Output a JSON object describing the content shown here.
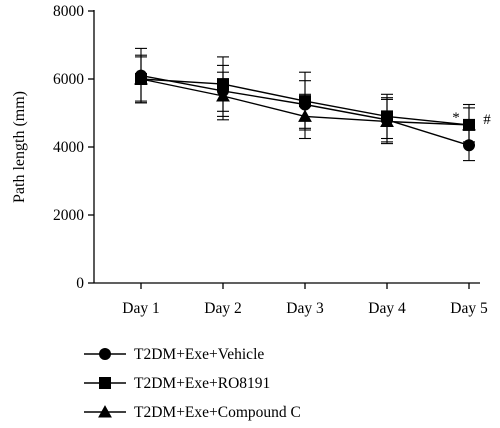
{
  "chart_data": {
    "type": "line",
    "title": "",
    "xlabel": "",
    "ylabel": "Path length (mm)",
    "categories": [
      "Day 1",
      "Day 2",
      "Day 3",
      "Day 4",
      "Day 5"
    ],
    "ylim": [
      0,
      8000
    ],
    "yticks": [
      "0",
      "2000",
      "4000",
      "6000",
      "8000"
    ],
    "grid": false,
    "legend_position": "bottom-left",
    "series": [
      {
        "name": "T2DM+Exe+Vehicle",
        "marker": "circle",
        "values": [
          6100,
          5650,
          5250,
          4800,
          4050
        ],
        "errors": [
          800,
          750,
          700,
          650,
          450
        ]
      },
      {
        "name": "T2DM+Exe+RO8191",
        "marker": "square",
        "values": [
          6000,
          5850,
          5350,
          4900,
          4650
        ],
        "errors": [
          700,
          800,
          850,
          650,
          600
        ]
      },
      {
        "name": "T2DM+Exe+Compound C",
        "marker": "triangle",
        "values": [
          6000,
          5500,
          4900,
          4750,
          4650
        ],
        "errors": [
          650,
          700,
          650,
          650,
          500
        ]
      }
    ],
    "annotations": [
      {
        "text": "*",
        "category": "Day 5"
      },
      {
        "text": "#",
        "category": "Day 5"
      }
    ]
  }
}
